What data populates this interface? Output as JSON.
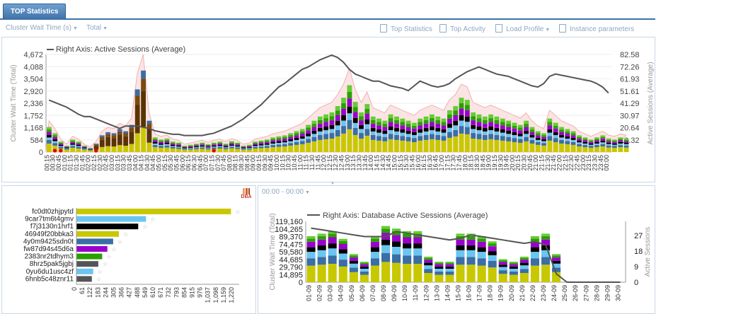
{
  "tab": {
    "title": "TOP Statistics"
  },
  "toolbar": {
    "metric": "Cluster Wait Time (s)",
    "scope": "Total",
    "links": [
      "Top Statistics",
      "Top Activity",
      "Load Profile",
      "Instance parameters"
    ]
  },
  "colors": {
    "yellow": "#c8c800",
    "blue": "#3a6ea5",
    "sky": "#6bc5f0",
    "black": "#000000",
    "purple": "#9900cc",
    "green": "#2aa000",
    "light": "#66cc33",
    "brown": "#5a3300",
    "line": "#555555",
    "band": "#f4b0b0"
  },
  "top_chart": {
    "legend": "Right Axis: Active Sessions (Average)",
    "y_left_label": "Cluster Wait Time (Total)",
    "y_right_label": "Active Sessions (Average)",
    "y_left_ticks": [
      "4,672",
      "4,088",
      "3,504",
      "2,920",
      "2,336",
      "1,752",
      "1,168",
      "584",
      "0"
    ],
    "y_right_ticks": [
      "82.58",
      "72.26",
      "61.93",
      "51.61",
      "41.29",
      "30.97",
      "20.64",
      "10.32"
    ]
  },
  "date_range": "00:00 - 00:00",
  "bottom_chart": {
    "legend": "Right Axis: Database Active Sessions (Average)",
    "y_left_label": "Cluster Wait Time (Total)",
    "y_right_label": "Active Sessions",
    "y_left_ticks": [
      "119,160",
      "104,265",
      "89,370",
      "74,475",
      "59,580",
      "44,685",
      "29,790",
      "14,895",
      "0"
    ],
    "y_right_ticks": [
      "27",
      "18",
      "9",
      "0"
    ],
    "x_labels": [
      "01-09",
      "02-09",
      "03-09",
      "04-09",
      "05-09",
      "06-09",
      "07-09",
      "08-09",
      "09-09",
      "10-09",
      "11-09",
      "12-09",
      "13-09",
      "14-09",
      "15-09",
      "16-09",
      "17-09",
      "18-09",
      "19-09",
      "20-09",
      "21-09",
      "22-09",
      "23-09",
      "24-09",
      "25-09",
      "26-09",
      "27-09",
      "28-09",
      "29-09",
      "30-09"
    ]
  },
  "chart_data": [
    {
      "type": "bar",
      "title": "",
      "stacked": true,
      "xlabel": "",
      "ylabel": "Cluster Wait Time (Total)",
      "y2label": "Active Sessions (Average)",
      "ylim": [
        0,
        4672
      ],
      "y2lim": [
        0,
        82.58
      ],
      "categories": [
        "00:15",
        "00:30",
        "00:45",
        "01:00",
        "01:15",
        "01:30",
        "01:45",
        "02:00",
        "02:15",
        "02:30",
        "02:45",
        "03:00",
        "03:15",
        "03:30",
        "03:45",
        "04:00",
        "04:15",
        "04:30",
        "04:45",
        "05:00",
        "05:15",
        "05:30",
        "05:45",
        "06:00",
        "06:15",
        "06:30",
        "06:45",
        "07:00",
        "07:15",
        "07:30",
        "07:45",
        "08:00",
        "08:15",
        "08:30",
        "08:45",
        "09:00",
        "09:15",
        "09:30",
        "09:45",
        "10:00",
        "10:15",
        "10:30",
        "10:45",
        "11:00",
        "11:15",
        "11:30",
        "11:45",
        "12:00",
        "12:15",
        "12:30",
        "12:45",
        "13:00",
        "13:15",
        "13:30",
        "13:45",
        "14:00",
        "14:15",
        "14:30",
        "14:45",
        "15:00",
        "15:15",
        "15:30",
        "15:45",
        "16:00",
        "16:15",
        "16:30",
        "16:45",
        "17:00",
        "17:15",
        "17:30",
        "17:45",
        "18:00",
        "18:15",
        "18:30",
        "18:45",
        "19:00",
        "19:15",
        "19:30",
        "19:45",
        "20:00",
        "20:15",
        "20:30",
        "20:45",
        "21:00",
        "21:15",
        "21:30",
        "21:45",
        "22:00",
        "22:15",
        "22:30",
        "22:45",
        "23:00",
        "23:15",
        "23:30",
        "23:45",
        "00:00"
      ],
      "totals": [
        1200,
        900,
        500,
        300,
        600,
        500,
        300,
        200,
        400,
        800,
        950,
        900,
        1100,
        1000,
        1300,
        3000,
        3900,
        1500,
        700,
        600,
        650,
        500,
        450,
        300,
        350,
        400,
        450,
        380,
        450,
        500,
        400,
        520,
        450,
        300,
        350,
        500,
        550,
        600,
        700,
        750,
        800,
        900,
        1000,
        1100,
        1300,
        1500,
        1700,
        1800,
        1900,
        2200,
        2600,
        3200,
        2400,
        1900,
        2300,
        1700,
        1600,
        1500,
        1800,
        1700,
        1600,
        1500,
        1400,
        1600,
        1700,
        1800,
        1700,
        1600,
        2000,
        2200,
        2600,
        2500,
        1900,
        1800,
        1700,
        1800,
        1700,
        1600,
        1500,
        1400,
        1300,
        1500,
        1200,
        1000,
        900,
        1600,
        1400,
        1200,
        1100,
        1000,
        800,
        700,
        600,
        700,
        800,
        650,
        600,
        700,
        650
      ],
      "series": [
        {
          "name": "Active Sessions (Average)",
          "axis": "right",
          "values": [
            44,
            42,
            40,
            38,
            35,
            32,
            30,
            30,
            28,
            26,
            24,
            22,
            20,
            22,
            22,
            22,
            21,
            20,
            18,
            17,
            16,
            15,
            15,
            14,
            14,
            14,
            14,
            15,
            16,
            18,
            20,
            22,
            25,
            28,
            32,
            36,
            40,
            45,
            50,
            55,
            58,
            62,
            66,
            70,
            72,
            75,
            78,
            80,
            82,
            80,
            76,
            70,
            66,
            64,
            62,
            60,
            60,
            58,
            56,
            55,
            54,
            52,
            56,
            60,
            58,
            56,
            55,
            56,
            58,
            62,
            65,
            68,
            70,
            72,
            70,
            68,
            66,
            65,
            64,
            62,
            60,
            58,
            56,
            55,
            58,
            64,
            66,
            65,
            64,
            63,
            62,
            61,
            60,
            58,
            55,
            50
          ]
        }
      ]
    },
    {
      "type": "bar",
      "title": "",
      "orientation": "horizontal",
      "xlabel": "",
      "ylabel": "",
      "xlim": [
        0,
        1220
      ],
      "categories": [
        "fc0dt0zhjpytd",
        "9car7tm6t4gmv",
        "f7j3130n1hrf1",
        "46949f20bbka3",
        "4y0m9425sdn0t",
        "fw87d94s45d6a",
        "2383nr2tdhym3",
        "8hrz5pak5jgbj",
        "0yu6du1usc4zf",
        "6hnb5c48znr11"
      ],
      "values": [
        1200,
        540,
        480,
        330,
        285,
        240,
        200,
        170,
        130,
        120
      ],
      "bar_colors": [
        "#c8c800",
        "#6bc5f0",
        "#000000",
        "#c8c800",
        "#3a6ea5",
        "#9900cc",
        "#2aa000",
        "#555555",
        "#6bc5f0",
        "#555555"
      ],
      "x_ticks": [
        "0",
        "61",
        "122",
        "183",
        "244",
        "305",
        "366",
        "427",
        "488",
        "549",
        "610",
        "671",
        "732",
        "793",
        "854",
        "915",
        "976",
        "1,037",
        "1,098",
        "1,159",
        "1,220"
      ]
    },
    {
      "type": "bar",
      "title": "",
      "stacked": true,
      "xlabel": "",
      "ylabel": "Cluster Wait Time (Total)",
      "y2label": "Active Sessions",
      "ylim": [
        0,
        119160
      ],
      "y2lim": [
        0,
        36
      ],
      "categories": [
        "01-09",
        "02-09",
        "03-09",
        "04-09",
        "05-09",
        "06-09",
        "07-09",
        "08-09",
        "09-09",
        "10-09",
        "11-09",
        "12-09",
        "13-09",
        "14-09",
        "15-09",
        "16-09",
        "17-09",
        "18-09",
        "19-09",
        "20-09",
        "21-09",
        "22-09",
        "23-09",
        "24-09",
        "25-09",
        "26-09",
        "27-09",
        "28-09",
        "29-09",
        "30-09"
      ],
      "totals": [
        90000,
        95000,
        100000,
        85000,
        55000,
        40000,
        90000,
        110000,
        105000,
        100000,
        100000,
        50000,
        40000,
        40000,
        95000,
        95000,
        90000,
        80000,
        45000,
        40000,
        50000,
        90000,
        95000,
        55000,
        0,
        0,
        0,
        0,
        0,
        0
      ],
      "series": [
        {
          "name": "Database Active Sessions (Average)",
          "axis": "right",
          "values": [
            32,
            31,
            30,
            29,
            28,
            27,
            27,
            27,
            30,
            29,
            28,
            27,
            26,
            25,
            26,
            28,
            27,
            26,
            25,
            24,
            23,
            24,
            22,
            5,
            0,
            0,
            0,
            0,
            0,
            0
          ]
        }
      ]
    }
  ]
}
